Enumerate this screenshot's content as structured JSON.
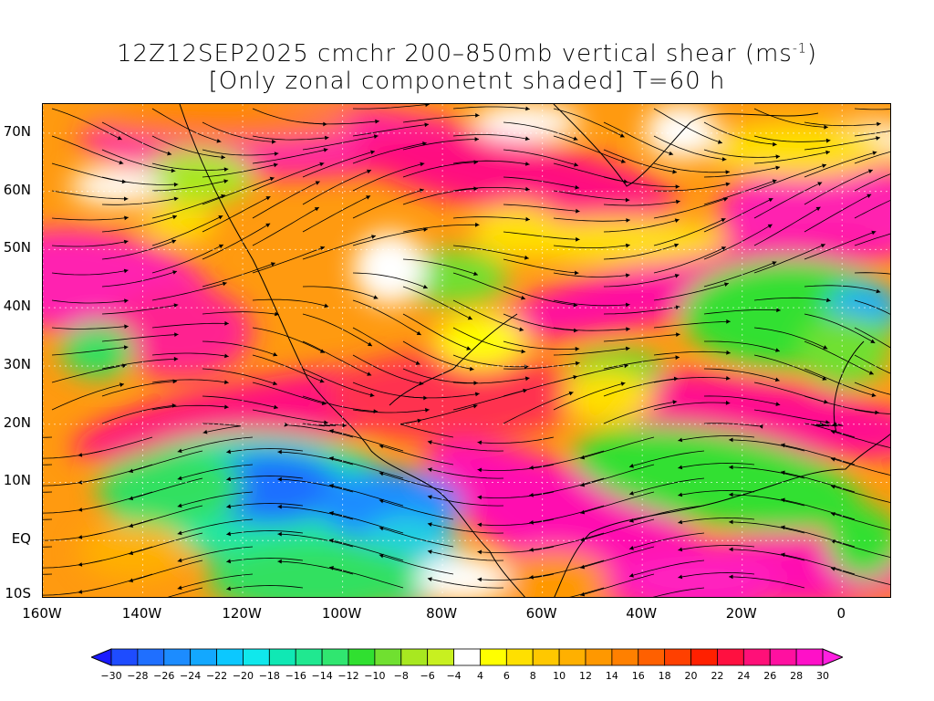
{
  "title": {
    "line1_prefix": "12Z12SEP2025 cmchr 200–850mb vertical shear (ms",
    "line1_sup": "-1",
    "line1_suffix": ")",
    "line2": "[Only zonal componetnt shaded] T=60 h"
  },
  "map": {
    "lat_labels": [
      "70N",
      "60N",
      "50N",
      "40N",
      "30N",
      "20N",
      "10N",
      "EQ",
      "10S"
    ],
    "lon_labels": [
      "160W",
      "140W",
      "120W",
      "100W",
      "80W",
      "60W",
      "40W",
      "20W",
      "0"
    ],
    "lat_values": [
      70,
      60,
      50,
      40,
      30,
      20,
      10,
      0,
      -10
    ],
    "lon_values": [
      -160,
      -140,
      -120,
      -100,
      -80,
      -60,
      -40,
      -20,
      0
    ],
    "lon_range": [
      -160,
      10
    ],
    "lat_range": [
      -10,
      75
    ]
  },
  "colorbar": {
    "labels": [
      "-30",
      "-28",
      "-26",
      "-24",
      "-22",
      "-20",
      "-18",
      "-16",
      "-14",
      "-12",
      "-10",
      "-8",
      "-6",
      "-4",
      "4",
      "6",
      "8",
      "10",
      "12",
      "14",
      "16",
      "18",
      "20",
      "22",
      "24",
      "26",
      "28",
      "30"
    ],
    "colors": [
      "#1a1aff",
      "#1e4cff",
      "#1f6fff",
      "#1c8cff",
      "#13a8ff",
      "#0cc8ff",
      "#10e8ec",
      "#10e8b4",
      "#20e890",
      "#30e670",
      "#30e030",
      "#70e030",
      "#a8e820",
      "#c8f020",
      "#ffffff",
      "#ffff00",
      "#ffe000",
      "#ffc800",
      "#ffb000",
      "#ff9800",
      "#ff8000",
      "#ff6000",
      "#ff4000",
      "#ff2000",
      "#ff1040",
      "#ff1078",
      "#ff10a0",
      "#ff10c8",
      "#ff20e0"
    ]
  }
}
